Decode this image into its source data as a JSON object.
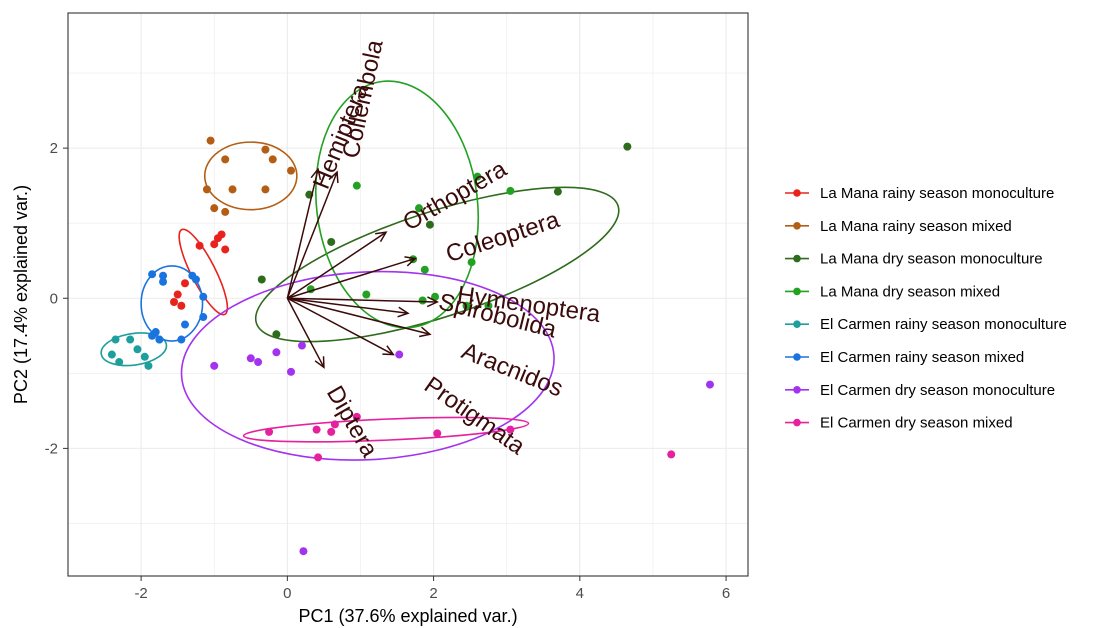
{
  "chart_data": {
    "type": "scatter",
    "subtype": "pca-biplot",
    "xlabel": "PC1 (37.6% explained var.)",
    "ylabel": "PC2 (17.4% explained var.)",
    "xlim": [
      -3.0,
      6.3
    ],
    "ylim": [
      -3.7,
      3.8
    ],
    "x_ticks": [
      -2,
      0,
      2,
      4,
      6
    ],
    "y_ticks": [
      -2,
      0,
      2
    ],
    "x_tick_labels": [
      "-2",
      "0",
      "2",
      "4",
      "6"
    ],
    "y_tick_labels": [
      "-2",
      "0",
      "2"
    ],
    "grid": true,
    "legend_position": "right",
    "series": [
      {
        "name": "La Mana rainy season monoculture",
        "color": "#e8231d",
        "points": [
          [
            -1.2,
            0.7
          ],
          [
            -1.0,
            0.72
          ],
          [
            -0.9,
            0.85
          ],
          [
            -0.95,
            0.8
          ],
          [
            -0.85,
            0.65
          ],
          [
            -1.4,
            0.2
          ],
          [
            -1.55,
            -0.05
          ],
          [
            -1.5,
            0.05
          ],
          [
            -1.45,
            -0.1
          ]
        ],
        "ellipse": {
          "cx": -1.15,
          "cy": 0.35,
          "rx": 0.65,
          "ry": 0.16,
          "angle_deg": 63
        }
      },
      {
        "name": "La Mana rainy season mixed",
        "color": "#b35e14",
        "points": [
          [
            -1.05,
            2.1
          ],
          [
            -0.85,
            1.85
          ],
          [
            -0.3,
            1.98
          ],
          [
            -0.2,
            1.85
          ],
          [
            0.05,
            1.7
          ],
          [
            -1.1,
            1.45
          ],
          [
            -0.75,
            1.45
          ],
          [
            -0.3,
            1.45
          ],
          [
            -1.0,
            1.2
          ],
          [
            -0.85,
            1.15
          ]
        ],
        "ellipse": {
          "cx": -0.5,
          "cy": 1.63,
          "rx": 0.63,
          "ry": 0.45,
          "angle_deg": 0
        }
      },
      {
        "name": "La Mana dry season monoculture",
        "color": "#2e6b1c",
        "points": [
          [
            4.65,
            2.02
          ],
          [
            3.7,
            1.42
          ],
          [
            0.3,
            1.38
          ],
          [
            0.6,
            0.75
          ],
          [
            -0.35,
            0.25
          ],
          [
            -0.15,
            -0.48
          ],
          [
            1.95,
            0.98
          ]
        ],
        "ellipse": {
          "cx": 2.05,
          "cy": 0.45,
          "rx": 2.6,
          "ry": 0.7,
          "angle_deg": -18
        }
      },
      {
        "name": "La Mana dry season mixed",
        "color": "#23a123",
        "points": [
          [
            2.6,
            1.62
          ],
          [
            0.95,
            1.5
          ],
          [
            1.8,
            1.2
          ],
          [
            3.05,
            1.43
          ],
          [
            1.72,
            0.52
          ],
          [
            1.88,
            0.38
          ],
          [
            2.52,
            0.48
          ],
          [
            0.32,
            0.12
          ],
          [
            1.08,
            0.05
          ],
          [
            1.85,
            -0.03
          ],
          [
            2.02,
            0.02
          ],
          [
            2.75,
            -0.1
          ],
          [
            2.45,
            -0.1
          ]
        ],
        "ellipse": {
          "cx": 1.5,
          "cy": 1.25,
          "rx": 1.1,
          "ry": 1.65,
          "angle_deg": -7
        }
      },
      {
        "name": "El Carmen rainy season monoculture",
        "color": "#1f9e9e",
        "points": [
          [
            -2.35,
            -0.55
          ],
          [
            -2.15,
            -0.55
          ],
          [
            -1.75,
            -0.55
          ],
          [
            -2.4,
            -0.75
          ],
          [
            -2.05,
            -0.68
          ],
          [
            -1.95,
            -0.78
          ],
          [
            -1.9,
            -0.9
          ],
          [
            -2.3,
            -0.85
          ]
        ],
        "ellipse": {
          "cx": -2.1,
          "cy": -0.68,
          "rx": 0.45,
          "ry": 0.21,
          "angle_deg": -8
        }
      },
      {
        "name": "El Carmen rainy season mixed",
        "color": "#1a74e0",
        "points": [
          [
            -1.85,
            0.32
          ],
          [
            -1.7,
            0.3
          ],
          [
            -1.7,
            0.22
          ],
          [
            -1.3,
            0.3
          ],
          [
            -1.25,
            0.25
          ],
          [
            -1.15,
            0.02
          ],
          [
            -1.15,
            -0.25
          ],
          [
            -1.4,
            -0.35
          ],
          [
            -1.45,
            -0.55
          ],
          [
            -1.8,
            -0.45
          ],
          [
            -1.75,
            -0.55
          ],
          [
            -1.85,
            -0.5
          ]
        ],
        "ellipse": {
          "cx": -1.58,
          "cy": -0.07,
          "rx": 0.42,
          "ry": 0.5,
          "angle_deg": 0
        }
      },
      {
        "name": "El Carmen dry season monoculture",
        "color": "#a333ee",
        "points": [
          [
            5.78,
            -1.15
          ],
          [
            1.53,
            -0.75
          ],
          [
            0.2,
            -0.63
          ],
          [
            -0.15,
            -0.72
          ],
          [
            -0.5,
            -0.8
          ],
          [
            -0.4,
            -0.85
          ],
          [
            -1.0,
            -0.9
          ],
          [
            0.05,
            -0.98
          ],
          [
            0.22,
            -3.37
          ]
        ],
        "ellipse": {
          "cx": 1.1,
          "cy": -0.9,
          "rx": 2.55,
          "ry": 1.25,
          "angle_deg": -3
        }
      },
      {
        "name": "El Carmen dry season mixed",
        "color": "#e6219d",
        "points": [
          [
            5.25,
            -2.08
          ],
          [
            0.95,
            -1.58
          ],
          [
            0.65,
            -1.68
          ],
          [
            0.4,
            -1.75
          ],
          [
            -0.25,
            -1.78
          ],
          [
            0.6,
            -1.78
          ],
          [
            2.05,
            -1.8
          ],
          [
            0.42,
            -2.12
          ],
          [
            3.05,
            -1.75
          ]
        ],
        "ellipse": {
          "cx": 1.35,
          "cy": -1.75,
          "rx": 1.95,
          "ry": 0.14,
          "angle_deg": -2.5
        }
      }
    ],
    "loadings": [
      {
        "label": "Hemiptera",
        "x": 0.68,
        "y": 1.68,
        "label_x": 0.75,
        "label_y": 2.15,
        "rotation": -68
      },
      {
        "label": "Collembola",
        "x": 0.42,
        "y": 1.72,
        "label_x": 1.05,
        "label_y": 2.65,
        "rotation": -78
      },
      {
        "label": "Orthoptera",
        "x": 1.35,
        "y": 0.88,
        "label_x": 2.3,
        "label_y": 1.35,
        "rotation": -30
      },
      {
        "label": "Coleoptera",
        "x": 1.75,
        "y": 0.53,
        "label_x": 2.95,
        "label_y": 0.8,
        "rotation": -18
      },
      {
        "label": "Hymenoptera",
        "x": 2.05,
        "y": -0.05,
        "label_x": 3.3,
        "label_y": -0.1,
        "rotation": 8
      },
      {
        "label": "Spirobolida",
        "x": 1.65,
        "y": -0.2,
        "label_x": 2.87,
        "label_y": -0.25,
        "rotation": 14
      },
      {
        "label": "Aracnidos",
        "x": 1.45,
        "y": -0.75,
        "label_x": 3.07,
        "label_y": -0.97,
        "rotation": 22
      },
      {
        "label": "Protigmata",
        "x": 1.95,
        "y": -0.48,
        "label_x": 2.55,
        "label_y": -1.58,
        "rotation": 35
      },
      {
        "label": "Diptera",
        "x": 0.5,
        "y": -0.92,
        "label_x": 0.87,
        "label_y": -1.65,
        "rotation": 60
      }
    ]
  }
}
